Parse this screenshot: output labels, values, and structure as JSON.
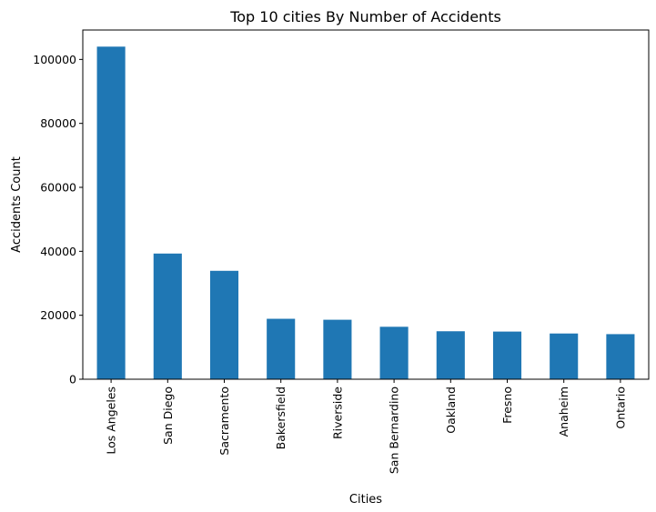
{
  "chart_data": {
    "type": "bar",
    "title": "Top 10 cities By Number of Accidents",
    "xlabel": "Cities",
    "ylabel": "Accidents Count",
    "categories": [
      "Los Angeles",
      "San Diego",
      "Sacramento",
      "Bakersfield",
      "Riverside",
      "San Bernardino",
      "Oakland",
      "Fresno",
      "Anaheim",
      "Ontario"
    ],
    "values": [
      104000,
      39300,
      33900,
      18900,
      18600,
      16400,
      15000,
      14900,
      14300,
      14100
    ],
    "ylim": [
      0,
      109200
    ],
    "yticks": [
      0,
      20000,
      40000,
      60000,
      80000,
      100000
    ],
    "ytick_labels": [
      "0",
      "20000",
      "40000",
      "60000",
      "80000",
      "100000"
    ],
    "bar_color": "#1f77b4",
    "grid": false,
    "legend": false
  }
}
